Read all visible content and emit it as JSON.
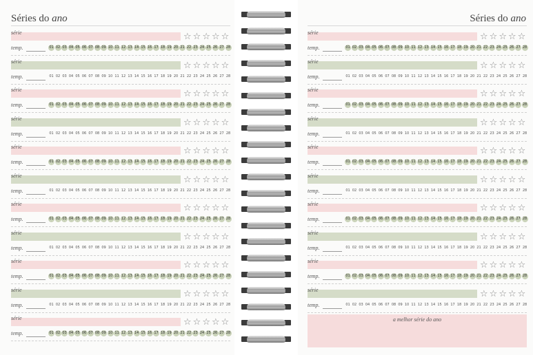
{
  "left_page": {
    "title_normal": "Séries do",
    "title_italic": "ano"
  },
  "right_page": {
    "title_normal": "Séries do",
    "title_italic": "ano",
    "best_label": "a melhor série do ano"
  },
  "labels": {
    "serie": "série",
    "temp": "temp."
  },
  "episodes": [
    "01",
    "02",
    "03",
    "04",
    "05",
    "06",
    "07",
    "08",
    "09",
    "10",
    "11",
    "12",
    "13",
    "14",
    "15",
    "16",
    "17",
    "18",
    "19",
    "20",
    "21",
    "22",
    "23",
    "24",
    "25",
    "26",
    "27",
    "28"
  ],
  "left_entries": [
    {
      "color": "#f6dcdc",
      "eps_on": [
        1,
        2,
        3,
        4,
        5,
        6,
        7,
        8,
        9,
        10,
        11,
        12,
        13,
        14,
        15,
        16,
        17,
        18,
        19,
        20,
        21,
        22,
        23,
        24,
        25,
        26,
        27,
        28
      ]
    },
    {
      "color": "#d5dcc8",
      "eps_on": []
    },
    {
      "color": "#f6dcdc",
      "eps_on": [
        1,
        2,
        3,
        4,
        5,
        6,
        7,
        8,
        9,
        10,
        11,
        12,
        13,
        14,
        15,
        16,
        17,
        18,
        19,
        20,
        21,
        22,
        23,
        24,
        25,
        26,
        27,
        28
      ]
    },
    {
      "color": "#d5dcc8",
      "eps_on": []
    },
    {
      "color": "#f6dcdc",
      "eps_on": [
        1,
        2,
        3,
        4,
        5,
        6,
        7,
        8,
        9,
        10,
        11,
        12,
        13,
        14,
        15,
        16,
        17,
        18,
        19,
        20,
        21,
        22,
        23,
        24,
        25,
        26,
        27,
        28
      ]
    },
    {
      "color": "#d5dcc8",
      "eps_on": []
    },
    {
      "color": "#f6dcdc",
      "eps_on": [
        1,
        2,
        3,
        4,
        5,
        6,
        7,
        8,
        9,
        10,
        11,
        12,
        13,
        14,
        15,
        16,
        17,
        18,
        19,
        20,
        21,
        22,
        23,
        24,
        25,
        26,
        27,
        28
      ]
    },
    {
      "color": "#d5dcc8",
      "eps_on": []
    },
    {
      "color": "#f6dcdc",
      "eps_on": [
        1,
        2,
        3,
        4,
        5,
        6,
        7,
        8,
        9,
        10,
        11,
        12,
        13,
        14,
        15,
        16,
        17,
        18,
        19,
        20,
        21,
        22,
        23,
        24,
        25,
        26,
        27,
        28
      ]
    },
    {
      "color": "#d5dcc8",
      "eps_on": []
    },
    {
      "color": "#f6dcdc",
      "eps_on": [
        1,
        2,
        3,
        4,
        5,
        6,
        7,
        8,
        9,
        10,
        11,
        12,
        13,
        14,
        15,
        16,
        17,
        18,
        19,
        20,
        21,
        22,
        23,
        24,
        25,
        26,
        27,
        28
      ]
    }
  ],
  "right_entries": [
    {
      "color": "#f6dcdc",
      "eps_on": [
        1,
        2,
        3,
        4,
        5,
        6,
        7,
        8,
        9,
        10,
        11,
        12,
        13,
        14,
        15,
        16,
        17,
        18,
        19,
        20,
        21,
        22,
        23,
        24,
        25,
        26,
        27,
        28
      ]
    },
    {
      "color": "#d5dcc8",
      "eps_on": []
    },
    {
      "color": "#f6dcdc",
      "eps_on": [
        1,
        2,
        3,
        4,
        5,
        6,
        7,
        8,
        9,
        10,
        11,
        12,
        13,
        14,
        15,
        16,
        17,
        18,
        19,
        20,
        21,
        22,
        23,
        24,
        25,
        26,
        27,
        28
      ]
    },
    {
      "color": "#d5dcc8",
      "eps_on": []
    },
    {
      "color": "#f6dcdc",
      "eps_on": [
        1,
        2,
        3,
        4,
        5,
        6,
        7,
        8,
        9,
        10,
        11,
        12,
        13,
        14,
        15,
        16,
        17,
        18,
        19,
        20,
        21,
        22,
        23,
        24,
        25,
        26,
        27,
        28
      ]
    },
    {
      "color": "#d5dcc8",
      "eps_on": []
    },
    {
      "color": "#f6dcdc",
      "eps_on": [
        1,
        2,
        3,
        4,
        5,
        6,
        7,
        8,
        9,
        10,
        11,
        12,
        13,
        14,
        15,
        16,
        17,
        18,
        19,
        20,
        21,
        22,
        23,
        24,
        25,
        26,
        27,
        28
      ]
    },
    {
      "color": "#d5dcc8",
      "eps_on": []
    },
    {
      "color": "#f6dcdc",
      "eps_on": [
        1,
        2,
        3,
        4,
        5,
        6,
        7,
        8,
        9,
        10,
        11,
        12,
        13,
        14,
        15,
        16,
        17,
        18,
        19,
        20,
        21,
        22,
        23,
        24,
        25,
        26,
        27,
        28
      ]
    },
    {
      "color": "#d5dcc8",
      "eps_on": []
    }
  ],
  "stars_per_entry": 5
}
